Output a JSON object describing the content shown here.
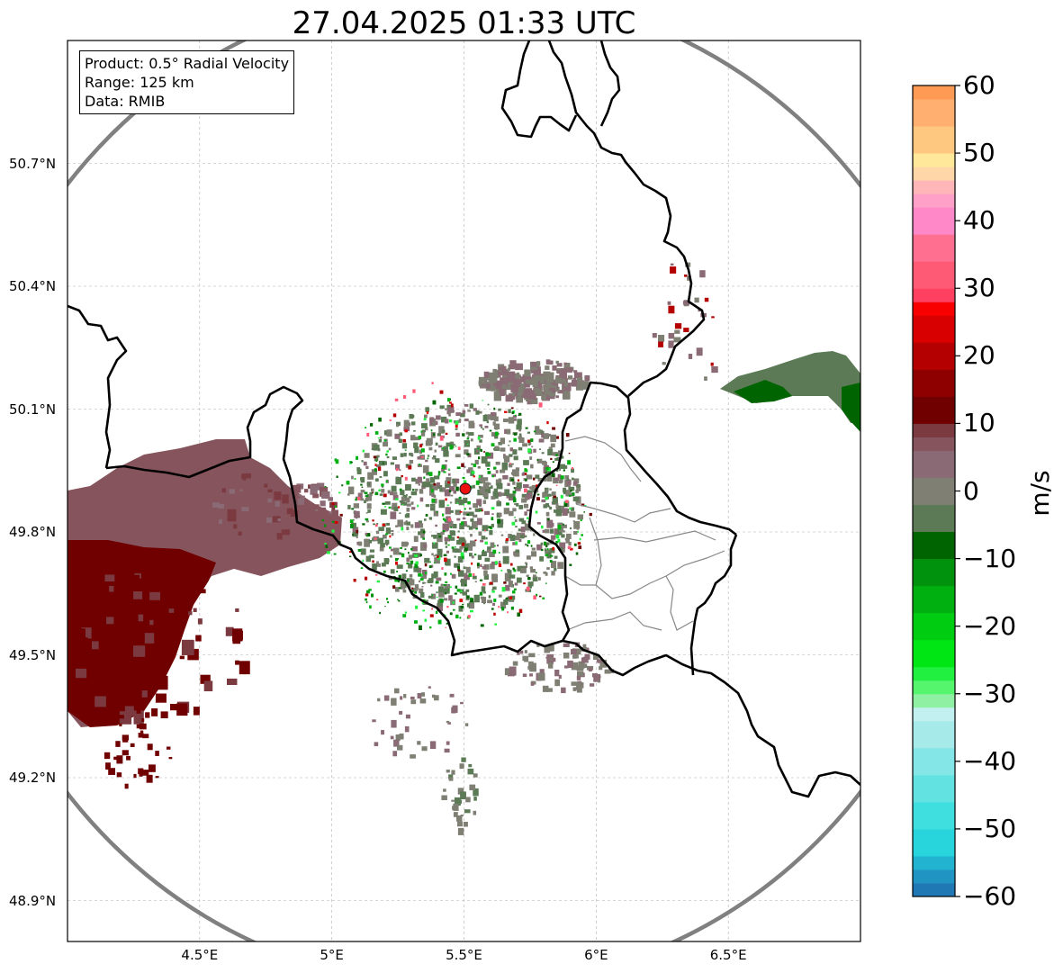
{
  "title": "27.04.2025 01:33 UTC",
  "info": {
    "product": "Product: 0.5° Radial Velocity",
    "range": "Range: 125 km",
    "data": "Data: RMIB"
  },
  "map": {
    "lon_range": [
      4.0,
      7.0
    ],
    "lat_range": [
      48.8,
      51.0
    ],
    "x_ticks": [
      {
        "value": 4.5,
        "label": "4.5°E"
      },
      {
        "value": 5.0,
        "label": "5°E"
      },
      {
        "value": 5.5,
        "label": "5.5°E"
      },
      {
        "value": 6.0,
        "label": "6°E"
      },
      {
        "value": 6.5,
        "label": "6.5°E"
      }
    ],
    "y_ticks": [
      {
        "value": 50.7,
        "label": "50.7°N"
      },
      {
        "value": 50.4,
        "label": "50.4°N"
      },
      {
        "value": 50.1,
        "label": "50.1°N"
      },
      {
        "value": 49.8,
        "label": "49.8°N"
      },
      {
        "value": 49.5,
        "label": "49.5°N"
      },
      {
        "value": 49.2,
        "label": "49.2°N"
      },
      {
        "value": 48.9,
        "label": "48.9°N"
      }
    ],
    "grid": true,
    "radar_site": {
      "lon": 5.505,
      "lat": 49.915
    },
    "range_ring_km": 125,
    "colors": {
      "border": "#000000",
      "region_border": "#888888",
      "ring": "#808080",
      "site_marker": "#ee1111",
      "grid": "#b0b0b0"
    }
  },
  "colorbar": {
    "unit": "m/s",
    "min": -60,
    "max": 60,
    "ticks": [
      {
        "value": 60,
        "label": "60"
      },
      {
        "value": 50,
        "label": "50"
      },
      {
        "value": 40,
        "label": "40"
      },
      {
        "value": 30,
        "label": "30"
      },
      {
        "value": 20,
        "label": "20"
      },
      {
        "value": 10,
        "label": "10"
      },
      {
        "value": 0,
        "label": "0"
      },
      {
        "value": -10,
        "label": "−10"
      },
      {
        "value": -20,
        "label": "−20"
      },
      {
        "value": -30,
        "label": "−30"
      },
      {
        "value": -40,
        "label": "−40"
      },
      {
        "value": -50,
        "label": "−50"
      },
      {
        "value": -60,
        "label": "−60"
      }
    ],
    "bins": [
      {
        "from": -60,
        "to": -58,
        "color": "#1f77b4"
      },
      {
        "from": -58,
        "to": -56,
        "color": "#2095c4"
      },
      {
        "from": -56,
        "to": -54,
        "color": "#22b3d0"
      },
      {
        "from": -54,
        "to": -50,
        "color": "#28d5dc"
      },
      {
        "from": -50,
        "to": -46,
        "color": "#3fdfe0"
      },
      {
        "from": -46,
        "to": -42,
        "color": "#62e3e2"
      },
      {
        "from": -42,
        "to": -38,
        "color": "#84e6e6"
      },
      {
        "from": -38,
        "to": -34,
        "color": "#a6eaea"
      },
      {
        "from": -34,
        "to": -32,
        "color": "#c2f0f0"
      },
      {
        "from": -32,
        "to": -30,
        "color": "#8ff0a4"
      },
      {
        "from": -30,
        "to": -28,
        "color": "#55f56e"
      },
      {
        "from": -28,
        "to": -26,
        "color": "#22f040"
      },
      {
        "from": -26,
        "to": -22,
        "color": "#00e614"
      },
      {
        "from": -22,
        "to": -18,
        "color": "#00cc12"
      },
      {
        "from": -18,
        "to": -14,
        "color": "#00b010"
      },
      {
        "from": -14,
        "to": -10,
        "color": "#00920c"
      },
      {
        "from": -10,
        "to": -6,
        "color": "#006400"
      },
      {
        "from": -6,
        "to": -2,
        "color": "#5b7a55"
      },
      {
        "from": -2,
        "to": 2,
        "color": "#7f7f74"
      },
      {
        "from": 2,
        "to": 6,
        "color": "#8a6a74"
      },
      {
        "from": 6,
        "to": 8,
        "color": "#86545c"
      },
      {
        "from": 8,
        "to": 10,
        "color": "#7a3a40"
      },
      {
        "from": 10,
        "to": 14,
        "color": "#700000"
      },
      {
        "from": 14,
        "to": 18,
        "color": "#8e0000"
      },
      {
        "from": 18,
        "to": 22,
        "color": "#b40000"
      },
      {
        "from": 22,
        "to": 26,
        "color": "#d80000"
      },
      {
        "from": 26,
        "to": 28,
        "color": "#f80000"
      },
      {
        "from": 28,
        "to": 30,
        "color": "#ff4060"
      },
      {
        "from": 30,
        "to": 34,
        "color": "#ff5a75"
      },
      {
        "from": 34,
        "to": 38,
        "color": "#ff6f90"
      },
      {
        "from": 38,
        "to": 42,
        "color": "#ff88c8"
      },
      {
        "from": 42,
        "to": 44,
        "color": "#ffa0c8"
      },
      {
        "from": 44,
        "to": 46,
        "color": "#ffb6b8"
      },
      {
        "from": 46,
        "to": 48,
        "color": "#ffd6a8"
      },
      {
        "from": 48,
        "to": 50,
        "color": "#ffe89a"
      },
      {
        "from": 50,
        "to": 54,
        "color": "#ffc880"
      },
      {
        "from": 54,
        "to": 58,
        "color": "#ffb070"
      },
      {
        "from": 58,
        "to": 60,
        "color": "#ff9a55"
      }
    ]
  }
}
